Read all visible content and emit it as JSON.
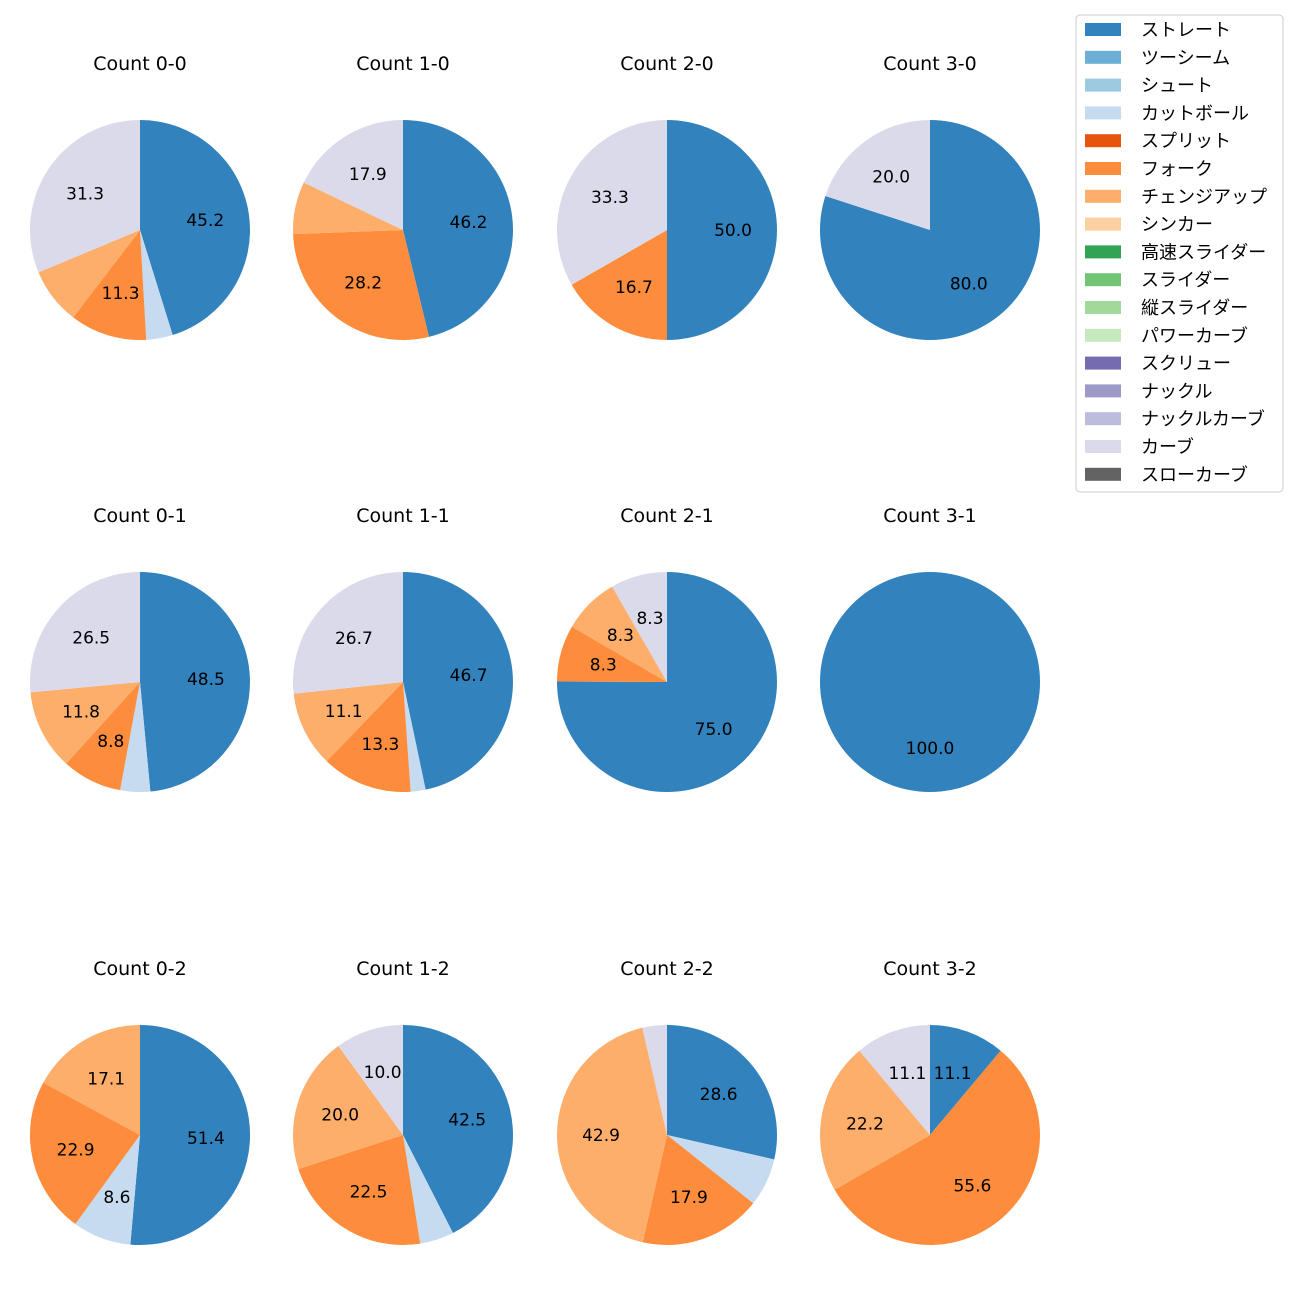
{
  "legend": {
    "items": [
      {
        "label": "ストレート",
        "color": "#3182bd"
      },
      {
        "label": "ツーシーム",
        "color": "#6baed6"
      },
      {
        "label": "シュート",
        "color": "#9ecae1"
      },
      {
        "label": "カットボール",
        "color": "#c6dbef"
      },
      {
        "label": "スプリット",
        "color": "#e6550d"
      },
      {
        "label": "フォーク",
        "color": "#fd8d3c"
      },
      {
        "label": "チェンジアップ",
        "color": "#fdae6b"
      },
      {
        "label": "シンカー",
        "color": "#fdd0a2"
      },
      {
        "label": "高速スライダー",
        "color": "#31a354"
      },
      {
        "label": "スライダー",
        "color": "#74c476"
      },
      {
        "label": "縦スライダー",
        "color": "#a1d99b"
      },
      {
        "label": "パワーカーブ",
        "color": "#c7e9c0"
      },
      {
        "label": "スクリュー",
        "color": "#756bb1"
      },
      {
        "label": "ナックル",
        "color": "#9e9ac8"
      },
      {
        "label": "ナックルカーブ",
        "color": "#bcbddc"
      },
      {
        "label": "カーブ",
        "color": "#dadaeb"
      },
      {
        "label": "スローカーブ",
        "color": "#636363"
      }
    ]
  },
  "chart_data": [
    {
      "type": "pie",
      "title": "Count 0-0",
      "slices": [
        {
          "category": "ストレート",
          "value": 45.2,
          "label": "45.2"
        },
        {
          "category": "カットボール",
          "value": 3.9,
          "label": ""
        },
        {
          "category": "フォーク",
          "value": 11.3,
          "label": "11.3"
        },
        {
          "category": "チェンジアップ",
          "value": 8.3,
          "label": ""
        },
        {
          "category": "カーブ",
          "value": 31.3,
          "label": "31.3"
        }
      ]
    },
    {
      "type": "pie",
      "title": "Count 1-0",
      "slices": [
        {
          "category": "ストレート",
          "value": 46.2,
          "label": "46.2"
        },
        {
          "category": "フォーク",
          "value": 28.2,
          "label": "28.2"
        },
        {
          "category": "チェンジアップ",
          "value": 7.7,
          "label": ""
        },
        {
          "category": "カーブ",
          "value": 17.9,
          "label": "17.9"
        }
      ]
    },
    {
      "type": "pie",
      "title": "Count 2-0",
      "slices": [
        {
          "category": "ストレート",
          "value": 50.0,
          "label": "50.0"
        },
        {
          "category": "フォーク",
          "value": 16.7,
          "label": "16.7"
        },
        {
          "category": "カーブ",
          "value": 33.3,
          "label": "33.3"
        }
      ]
    },
    {
      "type": "pie",
      "title": "Count 3-0",
      "slices": [
        {
          "category": "ストレート",
          "value": 80.0,
          "label": "80.0"
        },
        {
          "category": "カーブ",
          "value": 20.0,
          "label": "20.0"
        }
      ]
    },
    {
      "type": "pie",
      "title": "Count 0-1",
      "slices": [
        {
          "category": "ストレート",
          "value": 48.5,
          "label": "48.5"
        },
        {
          "category": "カットボール",
          "value": 4.4,
          "label": ""
        },
        {
          "category": "フォーク",
          "value": 8.8,
          "label": "8.8"
        },
        {
          "category": "チェンジアップ",
          "value": 11.8,
          "label": "11.8"
        },
        {
          "category": "カーブ",
          "value": 26.5,
          "label": "26.5"
        }
      ]
    },
    {
      "type": "pie",
      "title": "Count 1-1",
      "slices": [
        {
          "category": "ストレート",
          "value": 46.7,
          "label": "46.7"
        },
        {
          "category": "カットボール",
          "value": 2.2,
          "label": ""
        },
        {
          "category": "フォーク",
          "value": 13.3,
          "label": "13.3"
        },
        {
          "category": "チェンジアップ",
          "value": 11.1,
          "label": "11.1"
        },
        {
          "category": "カーブ",
          "value": 26.7,
          "label": "26.7"
        }
      ]
    },
    {
      "type": "pie",
      "title": "Count 2-1",
      "slices": [
        {
          "category": "ストレート",
          "value": 75.0,
          "label": "75.0"
        },
        {
          "category": "フォーク",
          "value": 8.3,
          "label": "8.3"
        },
        {
          "category": "チェンジアップ",
          "value": 8.3,
          "label": "8.3"
        },
        {
          "category": "カーブ",
          "value": 8.3,
          "label": "8.3"
        }
      ]
    },
    {
      "type": "pie",
      "title": "Count 3-1",
      "slices": [
        {
          "category": "ストレート",
          "value": 100.0,
          "label": "100.0"
        }
      ]
    },
    {
      "type": "pie",
      "title": "Count 0-2",
      "slices": [
        {
          "category": "ストレート",
          "value": 51.4,
          "label": "51.4"
        },
        {
          "category": "カットボール",
          "value": 8.6,
          "label": "8.6"
        },
        {
          "category": "フォーク",
          "value": 22.9,
          "label": "22.9"
        },
        {
          "category": "チェンジアップ",
          "value": 17.1,
          "label": "17.1"
        }
      ]
    },
    {
      "type": "pie",
      "title": "Count 1-2",
      "slices": [
        {
          "category": "ストレート",
          "value": 42.5,
          "label": "42.5"
        },
        {
          "category": "カットボール",
          "value": 5.0,
          "label": ""
        },
        {
          "category": "フォーク",
          "value": 22.5,
          "label": "22.5"
        },
        {
          "category": "チェンジアップ",
          "value": 20.0,
          "label": "20.0"
        },
        {
          "category": "カーブ",
          "value": 10.0,
          "label": "10.0"
        }
      ]
    },
    {
      "type": "pie",
      "title": "Count 2-2",
      "slices": [
        {
          "category": "ストレート",
          "value": 28.6,
          "label": "28.6"
        },
        {
          "category": "カットボール",
          "value": 7.1,
          "label": ""
        },
        {
          "category": "フォーク",
          "value": 17.9,
          "label": "17.9"
        },
        {
          "category": "チェンジアップ",
          "value": 42.9,
          "label": "42.9"
        },
        {
          "category": "カーブ",
          "value": 3.6,
          "label": ""
        }
      ]
    },
    {
      "type": "pie",
      "title": "Count 3-2",
      "slices": [
        {
          "category": "ストレート",
          "value": 11.1,
          "label": "11.1"
        },
        {
          "category": "フォーク",
          "value": 55.6,
          "label": "55.6"
        },
        {
          "category": "チェンジアップ",
          "value": 22.2,
          "label": "22.2"
        },
        {
          "category": "カーブ",
          "value": 11.1,
          "label": "11.1"
        }
      ]
    }
  ]
}
